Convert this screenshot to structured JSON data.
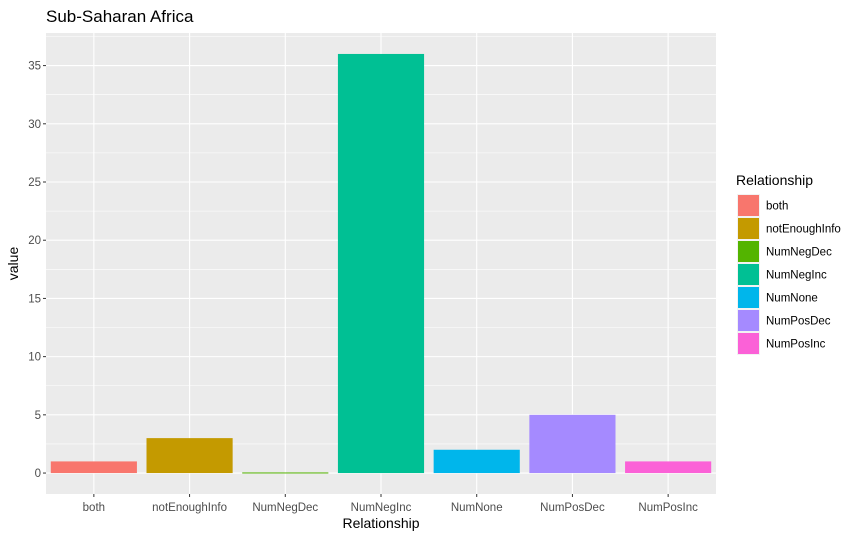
{
  "chart_data": {
    "type": "bar",
    "title": "Sub-Saharan Africa",
    "xlabel": "Relationship",
    "ylabel": "value",
    "categories": [
      "both",
      "notEnoughInfo",
      "NumNegDec",
      "NumNegInc",
      "NumNone",
      "NumPosDec",
      "NumPosInc"
    ],
    "values": [
      1,
      3,
      0.05,
      36,
      2,
      5,
      1
    ],
    "colors": [
      "#F8766D",
      "#C49A00",
      "#53B400",
      "#00C094",
      "#00B6EB",
      "#A58AFF",
      "#FB61D7"
    ],
    "yticks": [
      0,
      5,
      10,
      15,
      20,
      25,
      30,
      35
    ],
    "ylim": [
      -1.8,
      37.8
    ],
    "grid": true,
    "legend": {
      "title": "Relationship",
      "position": "right",
      "entries": [
        "both",
        "notEnoughInfo",
        "NumNegDec",
        "NumNegInc",
        "NumNone",
        "NumPosDec",
        "NumPosInc"
      ]
    },
    "panel_background": "#EBEBEB",
    "grid_color": "#FFFFFF"
  }
}
